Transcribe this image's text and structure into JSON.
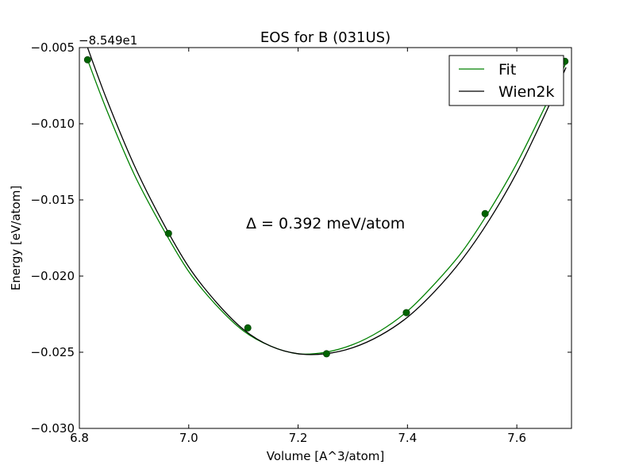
{
  "chart_data": {
    "type": "line",
    "title": "EOS for B (031US)",
    "xlabel": "Volume [A^3/atom]",
    "ylabel": "Energy [eV/atom]",
    "offset_text": "−8.549e1",
    "annotation": "Δ = 0.392 meV/atom",
    "xlim": [
      6.8,
      7.7
    ],
    "ylim": [
      -0.03,
      -0.005
    ],
    "x_ticks": [
      6.8,
      7.0,
      7.2,
      7.4,
      7.6
    ],
    "x_tick_labels": [
      "6.8",
      "7.0",
      "7.2",
      "7.4",
      "7.6"
    ],
    "y_ticks": [
      -0.005,
      -0.01,
      -0.015,
      -0.02,
      -0.025,
      -0.03
    ],
    "y_tick_labels": [
      "−0.005",
      "−0.010",
      "−0.015",
      "−0.020",
      "−0.025",
      "−0.030"
    ],
    "grid": false,
    "legend_position": "top-right",
    "series": [
      {
        "name": "Fit",
        "kind": "line",
        "color": "#008000",
        "x": [
          6.815,
          6.85,
          6.9,
          6.95,
          7.0,
          7.05,
          7.1,
          7.15,
          7.2,
          7.25,
          7.3,
          7.35,
          7.4,
          7.45,
          7.5,
          7.55,
          7.6,
          7.65,
          7.69
        ],
        "y": [
          -0.0058,
          -0.0091,
          -0.0133,
          -0.0167,
          -0.0197,
          -0.0219,
          -0.0236,
          -0.0246,
          -0.0251,
          -0.025,
          -0.0245,
          -0.0236,
          -0.0223,
          -0.0205,
          -0.0184,
          -0.0157,
          -0.0126,
          -0.009,
          -0.006
        ]
      },
      {
        "name": "Wien2k",
        "kind": "line",
        "color": "#000000",
        "x": [
          6.815,
          6.85,
          6.9,
          6.95,
          7.0,
          7.05,
          7.1,
          7.15,
          7.2,
          7.25,
          7.3,
          7.35,
          7.4,
          7.45,
          7.5,
          7.55,
          7.6,
          7.65,
          7.69
        ],
        "y": [
          -0.005,
          -0.0084,
          -0.0127,
          -0.0163,
          -0.0194,
          -0.0217,
          -0.0235,
          -0.0246,
          -0.0251,
          -0.0251,
          -0.0247,
          -0.0239,
          -0.0227,
          -0.021,
          -0.0189,
          -0.0163,
          -0.0132,
          -0.0095,
          -0.0063
        ]
      },
      {
        "name": "",
        "kind": "points",
        "color": "#006400",
        "x": [
          6.815,
          6.963,
          7.108,
          7.252,
          7.398,
          7.542,
          7.688
        ],
        "y": [
          -0.0058,
          -0.0172,
          -0.0234,
          -0.0251,
          -0.0224,
          -0.0159,
          -0.0059
        ]
      }
    ],
    "legend": [
      {
        "label": "Fit",
        "color": "#008000"
      },
      {
        "label": "Wien2k",
        "color": "#000000"
      }
    ]
  }
}
